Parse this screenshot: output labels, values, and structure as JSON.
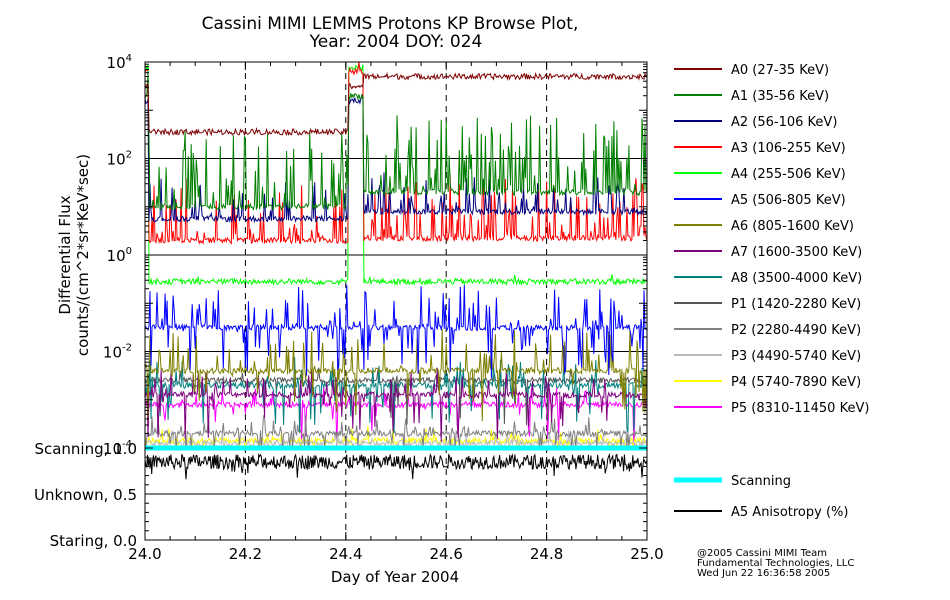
{
  "chart_data": {
    "type": "line",
    "title": "Cassini MIMI LEMMS Protons KP Browse Plot,",
    "subtitle": "Year: 2004 DOY: 024",
    "xlabel": "Day of Year 2004",
    "ylabel_line1": "Differential Flux",
    "ylabel_line2": "counts/(cm^2*sr*KeV*sec)",
    "xlim": [
      24.0,
      25.0
    ],
    "ylim_log10": [
      -4,
      4
    ],
    "x_ticks": [
      "24.0",
      "24.2",
      "24.4",
      "24.6",
      "24.8",
      "25.0"
    ],
    "y_ticks": [
      {
        "base": "10",
        "exp": "4",
        "log": 4
      },
      {
        "base": "10",
        "exp": "2",
        "log": 2
      },
      {
        "base": "10",
        "exp": "0",
        "log": 0
      },
      {
        "base": "10",
        "exp": "-2",
        "log": -2
      },
      {
        "base": "10",
        "exp": "-4",
        "log": -4
      }
    ],
    "gap_interval_doy": [
      24.405,
      24.435
    ],
    "series": [
      {
        "name": "A0 (27-35 KeV)",
        "color": "#7f0000",
        "levels_log10": [
          3.5,
          2.55,
          3.7
        ],
        "spikiness": 0.03
      },
      {
        "name": "A1 (35-56 KeV)",
        "color": "#007f00",
        "levels_log10": [
          3.3,
          1.0,
          1.3
        ],
        "spikiness": 0.9
      },
      {
        "name": "A2 (56-106 KeV)",
        "color": "#00007f",
        "levels_log10": [
          3.2,
          0.75,
          0.9
        ],
        "spikiness": 0.45
      },
      {
        "name": "A3 (106-255 KeV)",
        "color": "#ff0000",
        "levels_log10": [
          3.8,
          0.3,
          0.35
        ],
        "spikiness": 0.7
      },
      {
        "name": "A4 (255-506 KeV)",
        "color": "#00ff00",
        "levels_log10": [
          3.9,
          -0.55,
          -0.55
        ],
        "spikiness": 0.08
      },
      {
        "name": "A5 (506-805 KeV)",
        "color": "#0000ff",
        "levels_log10": [
          -1.5,
          -1.5,
          -1.5
        ],
        "spikiness": 0.5
      },
      {
        "name": "A6 (805-1600 KeV)",
        "color": "#7f7f00",
        "levels_log10": [
          -2.4,
          -2.4,
          -2.4
        ],
        "spikiness": 0.45
      },
      {
        "name": "A7 (1600-3500 KeV)",
        "color": "#7f007f",
        "levels_log10": [
          -2.9,
          -2.9,
          -2.9
        ],
        "spikiness": 0.3
      },
      {
        "name": "A8 (3500-4000 KeV)",
        "color": "#007f7f",
        "levels_log10": [
          -2.7,
          -2.7,
          -2.7
        ],
        "spikiness": 0.3
      },
      {
        "name": "P1 (1420-2280 KeV)",
        "color": "#555555",
        "levels_log10": [
          -2.6,
          -2.6,
          -2.6
        ],
        "spikiness": 0.12
      },
      {
        "name": "P2 (2280-4490 KeV)",
        "color": "#7f7f7f",
        "levels_log10": [
          -3.7,
          -3.7,
          -3.7
        ],
        "spikiness": 0.2
      },
      {
        "name": "P3 (4490-5740 KeV)",
        "color": "#bbbbbb",
        "levels_log10": [
          -3.9,
          -3.9,
          -3.9
        ],
        "spikiness": 0.15
      },
      {
        "name": "P4 (5740-7890 KeV)",
        "color": "#ffff00",
        "levels_log10": [
          -3.85,
          -3.85,
          -3.85
        ],
        "spikiness": 0.15
      },
      {
        "name": "P5 (8310-11450 KeV)",
        "color": "#ff00ff",
        "levels_log10": [
          -3.1,
          -3.1,
          -3.1
        ],
        "spikiness": 0.2
      }
    ],
    "lower_panel": {
      "y_labels": [
        {
          "label": "Scanning, 1.0",
          "value": 1.0
        },
        {
          "label": "Unknown, 0.5",
          "value": 0.5
        },
        {
          "label": "Staring, 0.0",
          "value": 0.0
        }
      ],
      "series": [
        {
          "name": "Scanning",
          "color": "#00ffff",
          "value": 1.0
        },
        {
          "name": "A5 Anisotropy (%)",
          "color": "#000000",
          "mean": 0.85
        }
      ]
    },
    "credits": [
      "@2005 Cassini MIMI Team",
      "Fundamental Technologies, LLC",
      "Wed Jun 22 16:36:58 2005"
    ]
  }
}
